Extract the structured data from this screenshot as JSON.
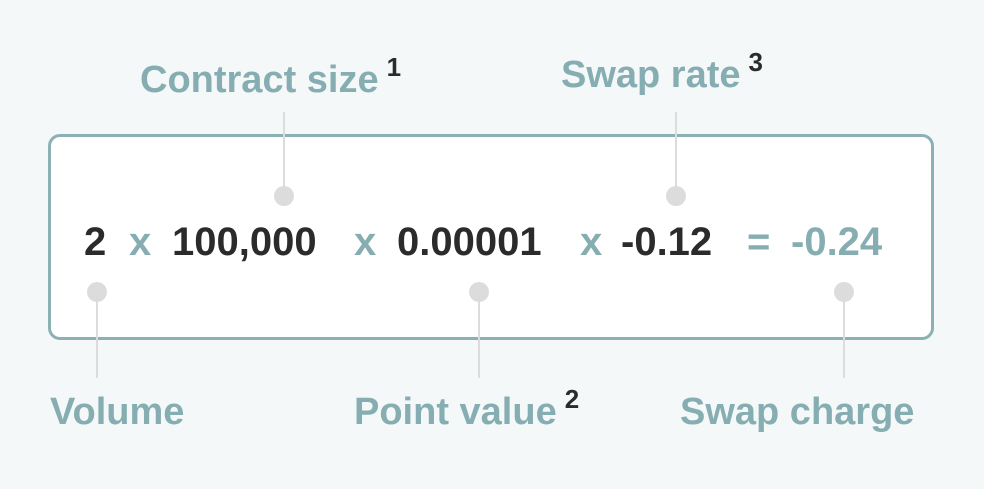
{
  "labels": {
    "contract_size": "Contract size",
    "contract_size_note": "1",
    "swap_rate": "Swap rate",
    "swap_rate_note": "3",
    "volume": "Volume",
    "point_value": "Point value",
    "point_value_note": "2",
    "swap_charge": "Swap charge"
  },
  "equation": {
    "volume": "2",
    "op1": "x",
    "contract_size": "100,000",
    "op2": "x",
    "point_value": "0.00001",
    "op3": "x",
    "swap_rate": "-0.12",
    "equals": "=",
    "swap_charge": "-0.24"
  },
  "colors": {
    "accent": "#86aeb2",
    "text": "#2b2b2b",
    "border": "#8bb1b5",
    "connector": "#dcdcdc",
    "background": "#f4f8f9"
  }
}
